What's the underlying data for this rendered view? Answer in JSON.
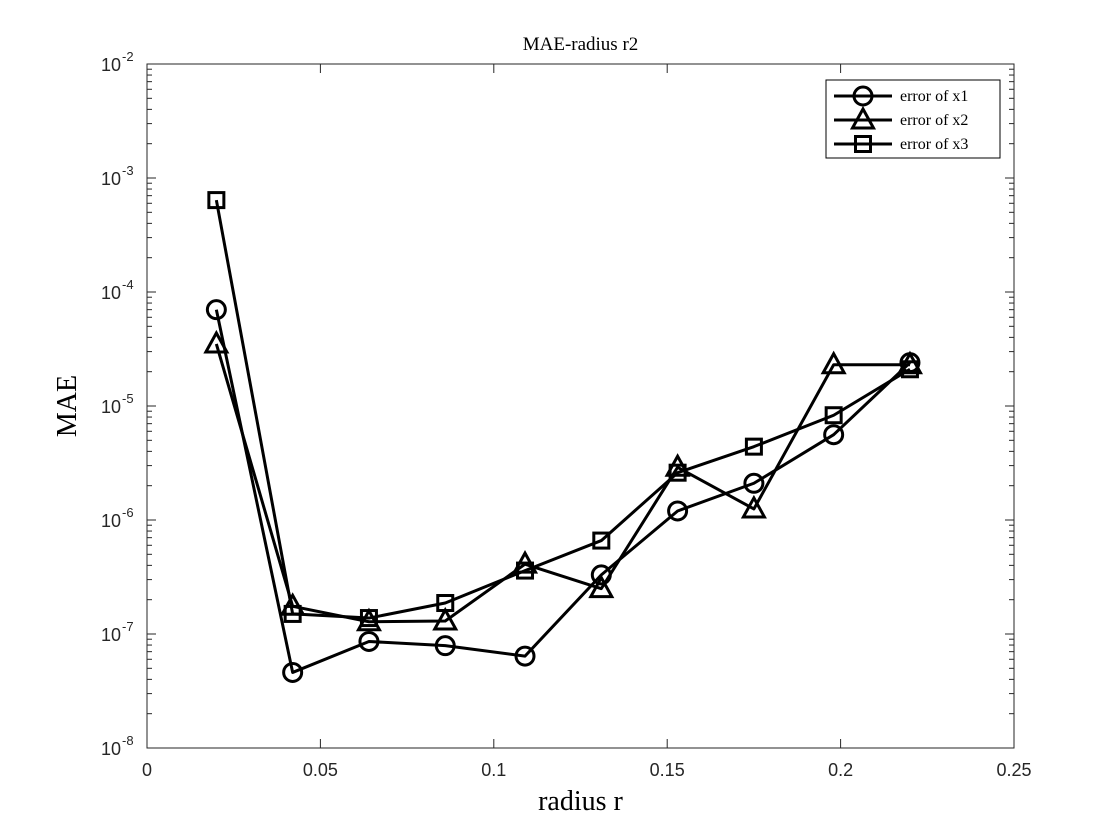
{
  "chart_data": {
    "type": "line",
    "title": "MAE-radius r2",
    "xlabel": "radius r",
    "ylabel": "MAE",
    "xlim": [
      0,
      0.25
    ],
    "ylim": [
      1e-08,
      0.01
    ],
    "yscale": "log",
    "grid": false,
    "legend_position": "top-right",
    "x_ticks": [
      "0",
      "0.05",
      "0.1",
      "0.15",
      "0.2",
      "0.25"
    ],
    "y_ticks": [
      {
        "base": "10",
        "exp": "-8"
      },
      {
        "base": "10",
        "exp": "-7"
      },
      {
        "base": "10",
        "exp": "-6"
      },
      {
        "base": "10",
        "exp": "-5"
      },
      {
        "base": "10",
        "exp": "-4"
      },
      {
        "base": "10",
        "exp": "-3"
      },
      {
        "base": "10",
        "exp": "-2"
      }
    ],
    "x": [
      0.02,
      0.042,
      0.064,
      0.086,
      0.109,
      0.131,
      0.153,
      0.175,
      0.198,
      0.22
    ],
    "series": [
      {
        "name": "error of x1",
        "marker": "circle",
        "values": [
          7e-05,
          4.6e-08,
          8.6e-08,
          7.9e-08,
          6.4e-08,
          3.3e-07,
          1.2e-06,
          2.1e-06,
          5.6e-06,
          2.4e-05
        ]
      },
      {
        "name": "error of x2",
        "marker": "triangle",
        "values": [
          3.5e-05,
          1.75e-07,
          1.28e-07,
          1.3e-07,
          4.1e-07,
          2.5e-07,
          2.9e-06,
          1.25e-06,
          2.3e-05,
          2.3e-05
        ]
      },
      {
        "name": "error of x3",
        "marker": "square",
        "values": [
          0.00064,
          1.5e-07,
          1.38e-07,
          1.87e-07,
          3.6e-07,
          6.6e-07,
          2.6e-06,
          4.4e-06,
          8.3e-06,
          2.1e-05
        ]
      }
    ],
    "colors": {
      "line": "#000000",
      "axis": "#262626"
    }
  }
}
